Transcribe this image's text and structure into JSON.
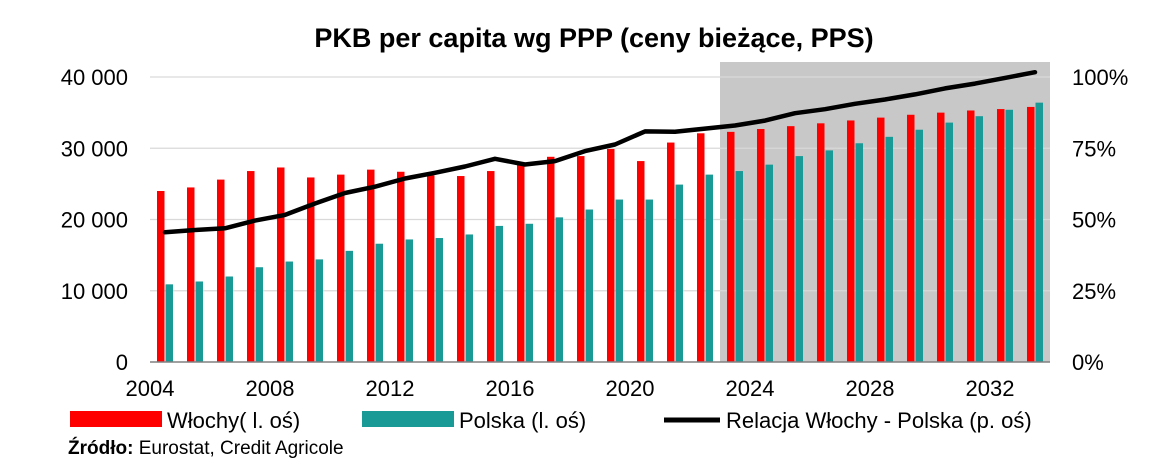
{
  "chart_data": {
    "type": "bar",
    "title": "PKB per capita wg PPP (ceny bieżące, PPS)",
    "x": [
      2004,
      2005,
      2006,
      2007,
      2008,
      2009,
      2010,
      2011,
      2012,
      2013,
      2014,
      2015,
      2016,
      2017,
      2018,
      2019,
      2020,
      2021,
      2022,
      2023,
      2024,
      2025,
      2026,
      2027,
      2028,
      2029,
      2030,
      2031,
      2032,
      2033
    ],
    "series": [
      {
        "name": "Włochy( l. oś)",
        "kind": "bar",
        "axis": "left",
        "values": [
          24000,
          24500,
          25600,
          26800,
          27300,
          25900,
          26300,
          27000,
          26700,
          26200,
          26100,
          26800,
          28000,
          28800,
          28900,
          29900,
          28200,
          30800,
          32100,
          32300,
          32700,
          33100,
          33500,
          33900,
          34300,
          34700,
          35000,
          35300,
          35500,
          35800
        ]
      },
      {
        "name": "Polska (l. oś)",
        "kind": "bar",
        "axis": "left",
        "values": [
          10900,
          11300,
          12000,
          13300,
          14100,
          14400,
          15600,
          16600,
          17200,
          17400,
          17900,
          19100,
          19400,
          20300,
          21400,
          22800,
          22800,
          24900,
          26300,
          26800,
          27700,
          28900,
          29700,
          30700,
          31600,
          32600,
          33600,
          34500,
          35400,
          36400
        ]
      },
      {
        "name": "Relacja Włochy - Polska (p. oś)",
        "kind": "line",
        "axis": "right",
        "values": [
          45.5,
          46.3,
          46.9,
          49.6,
          51.6,
          55.6,
          59.3,
          61.5,
          64.4,
          66.4,
          68.6,
          71.3,
          69.3,
          70.5,
          74.0,
          76.3,
          80.9,
          80.8,
          81.9,
          83.0,
          84.7,
          87.3,
          88.7,
          90.6,
          92.1,
          93.9,
          96.0,
          97.7,
          99.7,
          101.7
        ]
      }
    ],
    "y_left": {
      "min": 0,
      "max": 40000,
      "ticks": [
        "0",
        "10 000",
        "20 000",
        "30 000",
        "40 000"
      ]
    },
    "y_right": {
      "min": 0,
      "max": 100,
      "ticks": [
        "0%",
        "25%",
        "50%",
        "75%",
        "100%"
      ]
    },
    "x_ticks": [
      "2004",
      "2008",
      "2012",
      "2016",
      "2020",
      "2024",
      "2028",
      "2032"
    ],
    "forecast_start": 2022.5,
    "colors": {
      "italy": "#ff0000",
      "poland": "#1a9a96",
      "relation": "#000000",
      "forecast_shade": "#c8c8c8"
    },
    "legend_position": "bottom",
    "grid": "horizontal"
  },
  "source": {
    "label": "Źródło:",
    "text": " Eurostat, Credit Agricole"
  }
}
